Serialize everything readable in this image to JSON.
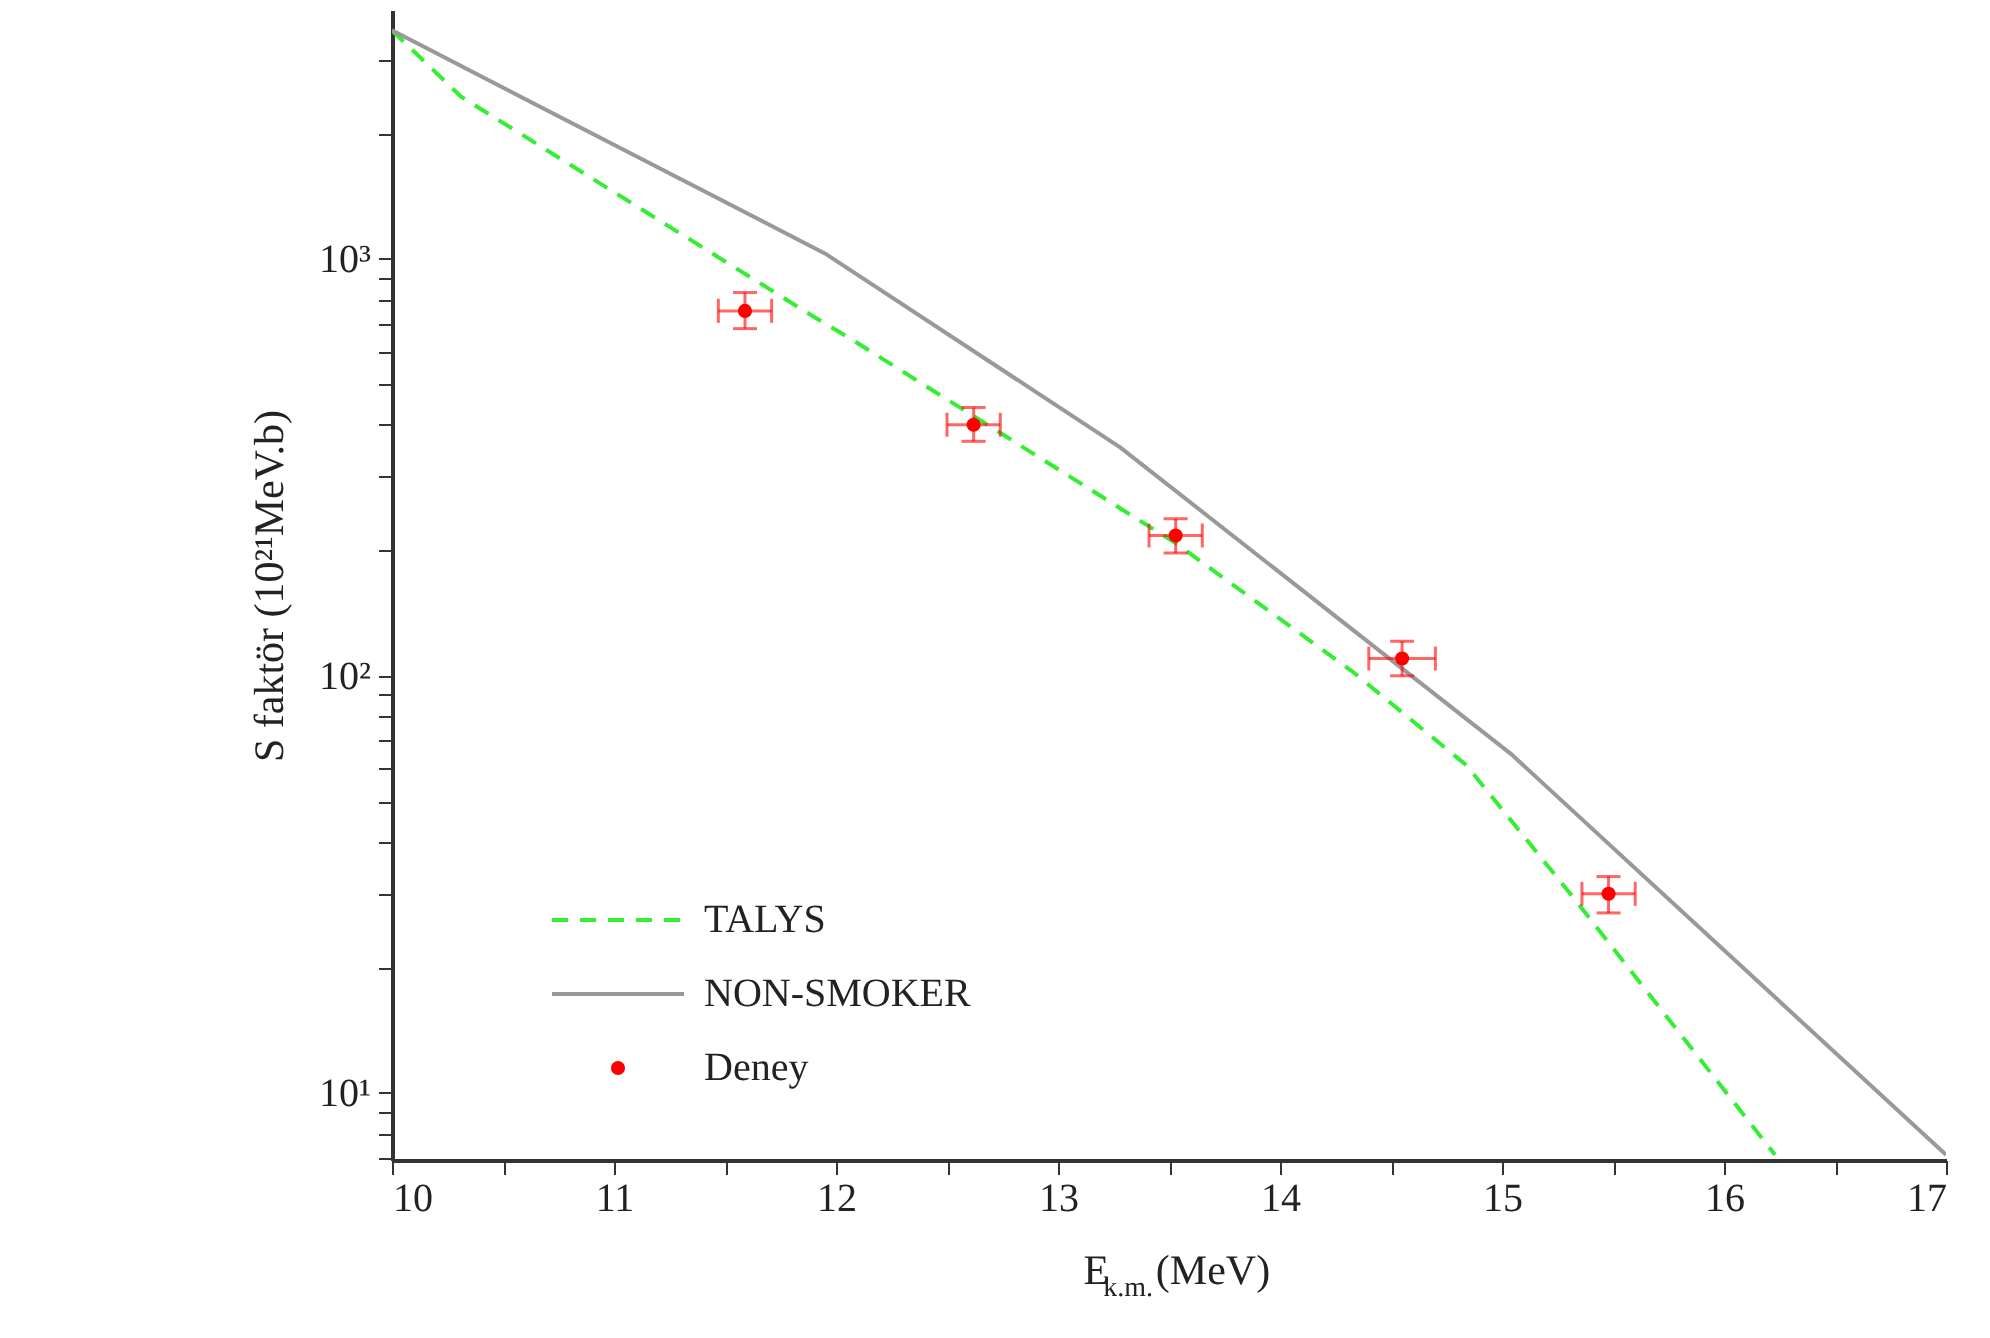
{
  "chart_data": {
    "type": "line",
    "xlabel": "E$_{k.m.}$(MeV)",
    "ylabel": "S faktör (10²¹MeV.b)",
    "log": "y",
    "legend": "bottom left",
    "grid": false,
    "xlim": [
      10,
      17
    ],
    "ylim": [
      6.9,
      3950
    ],
    "xticks": [
      10,
      {
        "value": 10.5,
        "label": null
      },
      11,
      {
        "value": 11.5,
        "label": null
      },
      12,
      {
        "value": 12.5,
        "label": null
      },
      13,
      {
        "value": 13.5,
        "label": null
      },
      14,
      {
        "value": 14.5,
        "label": null
      },
      15,
      {
        "value": 15.5,
        "label": null
      },
      16,
      {
        "value": 16.5,
        "label": null
      },
      17
    ],
    "yticks": [
      {
        "value": 7,
        "label": null
      },
      {
        "value": 8,
        "label": null
      },
      {
        "value": 9,
        "label": null
      },
      {
        "value": 10,
        "label": "10¹"
      },
      {
        "value": 20,
        "label": null
      },
      {
        "value": 30,
        "label": null
      },
      {
        "value": 40,
        "label": null
      },
      {
        "value": 50,
        "label": null
      },
      {
        "value": 60,
        "label": null
      },
      {
        "value": 70,
        "label": null
      },
      {
        "value": 80,
        "label": null
      },
      {
        "value": 90,
        "label": null
      },
      {
        "value": 100,
        "label": "10²"
      },
      {
        "value": 200,
        "label": null
      },
      {
        "value": 300,
        "label": null
      },
      {
        "value": 400,
        "label": null
      },
      {
        "value": 500,
        "label": null
      },
      {
        "value": 600,
        "label": null
      },
      {
        "value": 700,
        "label": null
      },
      {
        "value": 800,
        "label": null
      },
      {
        "value": 900,
        "label": null
      },
      {
        "value": 1000,
        "label": "10³"
      },
      {
        "value": 2000,
        "label": null
      },
      {
        "value": 3000,
        "label": null
      }
    ],
    "series": [
      {
        "name": "TALYS",
        "type": "line",
        "line_style": "dashed",
        "color": "#33ee33",
        "x": [
          10,
          10.31,
          11.9,
          12.08,
          13.53,
          14.33,
          14.84,
          15.33,
          15.8,
          16.23
        ],
        "values": [
          3530,
          2450,
          726,
          636,
          208,
          102,
          61,
          29,
          13.9,
          7.1
        ]
      },
      {
        "name": "NON-SMOKER",
        "type": "line",
        "line_style": "solid",
        "color": "#999999",
        "x": [
          10,
          11.95,
          13.28,
          15.04,
          17
        ],
        "values": [
          3530,
          1030,
          353,
          65,
          7.1
        ]
      },
      {
        "name": "Deney",
        "type": "scatter",
        "marker": "circle",
        "color": "#ff0000",
        "x": [
          11.59,
          12.62,
          13.53,
          14.55,
          15.48
        ],
        "values": [
          750,
          400,
          217,
          110,
          30
        ],
        "errors": [
          [
            680,
            830
          ],
          [
            365,
            440
          ],
          [
            197,
            238
          ],
          [
            100,
            121
          ],
          [
            27,
            33
          ]
        ],
        "xerrors": [
          0.12,
          0.12,
          0.12,
          0.15,
          0.12
        ]
      }
    ]
  }
}
